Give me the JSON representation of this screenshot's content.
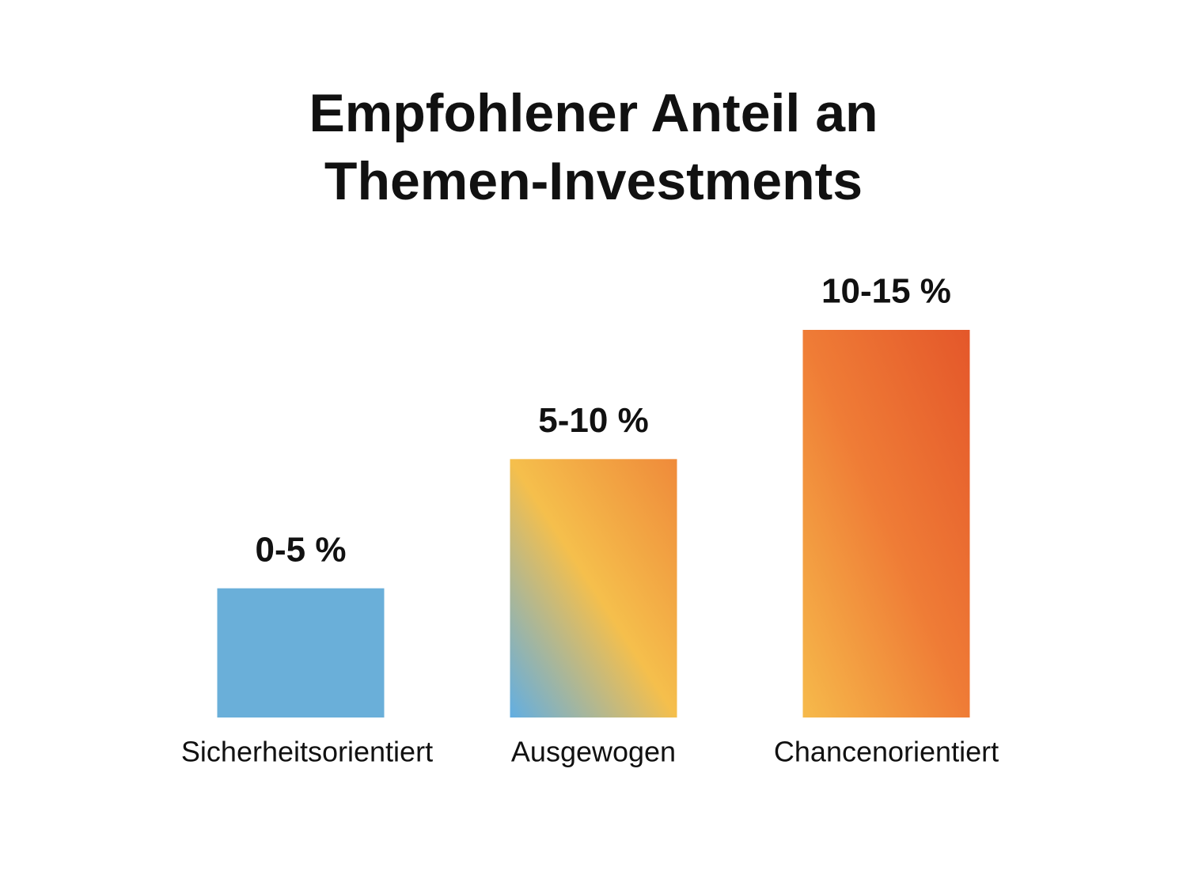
{
  "chart_data": {
    "type": "bar",
    "title": "Empfohlener Anteil an Themen-Investments",
    "categories": [
      "Sicherheitsorientiert",
      "Ausgewogen",
      "Chancenorientiert"
    ],
    "values": [
      5,
      10,
      15
    ],
    "value_labels": [
      "0-5 %",
      "5-10 %",
      "10-15 %"
    ],
    "colors": [
      [
        "#6aafd9",
        "#6aafd9"
      ],
      [
        "#62aee2",
        "#f5bf4c",
        "#ef8a3a"
      ],
      [
        "#f6ba4b",
        "#ef7c36",
        "#e4572a"
      ]
    ]
  }
}
